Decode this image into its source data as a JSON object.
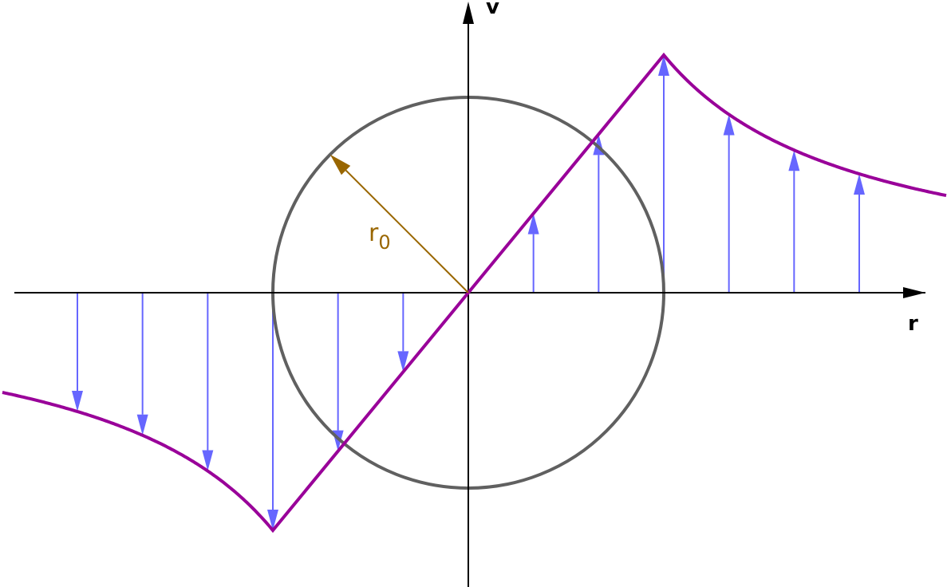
{
  "labels": {
    "v_axis": "v",
    "r_axis": "r",
    "radius": "r",
    "radius_sub": "0"
  },
  "colors": {
    "axis": "#000000",
    "circle": "#606060",
    "profile": "#990099",
    "arrows": "#6666ff",
    "radius": "#996600"
  },
  "profile": {
    "description_type": "rankine-vortex",
    "arrow_r_over_r0": [
      -2,
      -1.6667,
      -1.3333,
      -1,
      -0.6667,
      -0.3333,
      0.3333,
      0.6667,
      1,
      1.3333,
      1.6667,
      2
    ]
  }
}
